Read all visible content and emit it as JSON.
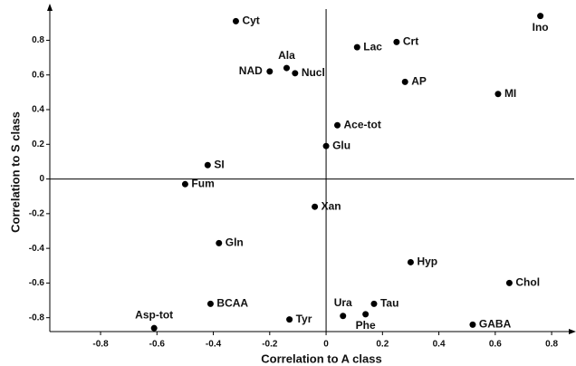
{
  "chart_data": {
    "type": "scatter",
    "xlabel": "Correlation to A class",
    "ylabel": "Correlation to S class",
    "point_labels": [
      "Cyt",
      "Ino",
      "Lac",
      "Crt",
      "Ala",
      "NAD",
      "Nucl",
      "AP",
      "MI",
      "Ace-tot",
      "Glu",
      "SI",
      "Fum",
      "Xan",
      "Gln",
      "Hyp",
      "Chol",
      "BCAA",
      "Tau",
      "Ura",
      "Phe",
      "Tyr",
      "Asp-tot",
      "GABA"
    ],
    "x": [
      -0.32,
      0.76,
      0.11,
      0.25,
      -0.14,
      -0.2,
      -0.11,
      0.28,
      0.61,
      0.04,
      0,
      -0.42,
      -0.5,
      -0.04,
      -0.38,
      0.3,
      0.65,
      -0.41,
      0.17,
      0.06,
      0.14,
      -0.13,
      -0.61,
      0.52
    ],
    "values": [
      0.91,
      0.94,
      0.76,
      0.79,
      0.64,
      0.62,
      0.61,
      0.56,
      0.49,
      0.31,
      0.19,
      0.08,
      -0.03,
      -0.16,
      -0.37,
      -0.48,
      -0.6,
      -0.72,
      -0.72,
      -0.79,
      -0.78,
      -0.81,
      -0.86,
      -0.84
    ],
    "color": "#000000",
    "xlim": [
      -0.98,
      0.88
    ],
    "ylim": [
      -0.88,
      0.98
    ],
    "xticks": [
      -0.8,
      -0.6,
      -0.4,
      -0.2,
      0,
      0.2,
      0.4,
      0.6,
      0.8
    ],
    "yticks": [
      -0.8,
      -0.6,
      -0.4,
      -0.2,
      0,
      0.2,
      0.4,
      0.6,
      0.8
    ]
  }
}
